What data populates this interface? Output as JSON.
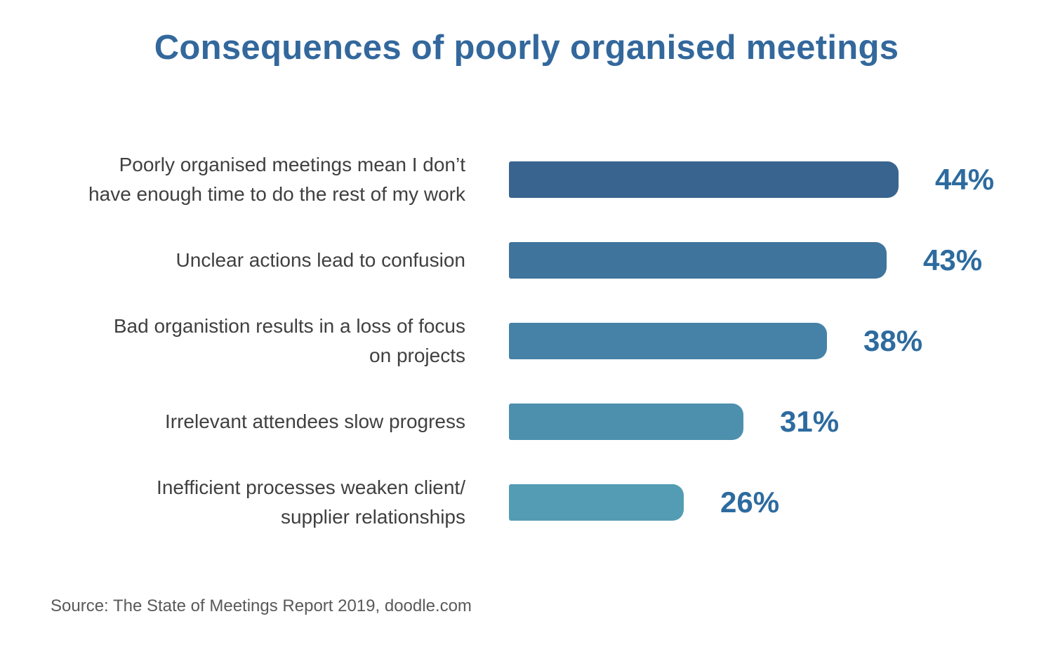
{
  "chart_data": {
    "type": "bar",
    "orientation": "horizontal",
    "title": "Consequences of poorly organised meetings",
    "source": "Source: The State of Meetings Report 2019, doodle.com",
    "categories": [
      "Poorly organised meetings mean I don’t have enough time to do the rest of my work",
      "Unclear actions lead to confusion",
      "Bad organistion results in a loss of focus on projects",
      "Irrelevant attendees slow progress",
      "Inefficient processes weaken client/ supplier relationships"
    ],
    "label_lines": [
      [
        "Poorly organised meetings mean I don’t",
        "have enough time to do the rest of my work"
      ],
      [
        "Unclear actions lead to confusion"
      ],
      [
        "Bad organistion results in a loss of focus",
        "on projects"
      ],
      [
        "Irrelevant attendees slow progress"
      ],
      [
        "Inefficient processes weaken client/",
        "supplier relationships"
      ]
    ],
    "values": [
      44,
      43,
      38,
      31,
      26
    ],
    "value_labels": [
      "44%",
      "43%",
      "38%",
      "31%",
      "26%"
    ],
    "bar_colors": [
      "#39648f",
      "#3f749c",
      "#4682a8",
      "#4d90ae",
      "#539cb4"
    ],
    "grid": false,
    "legend": false,
    "colors": {
      "title": "#33689c",
      "percent": "#2d6b9f",
      "label": "#404040",
      "source": "#595959"
    }
  }
}
